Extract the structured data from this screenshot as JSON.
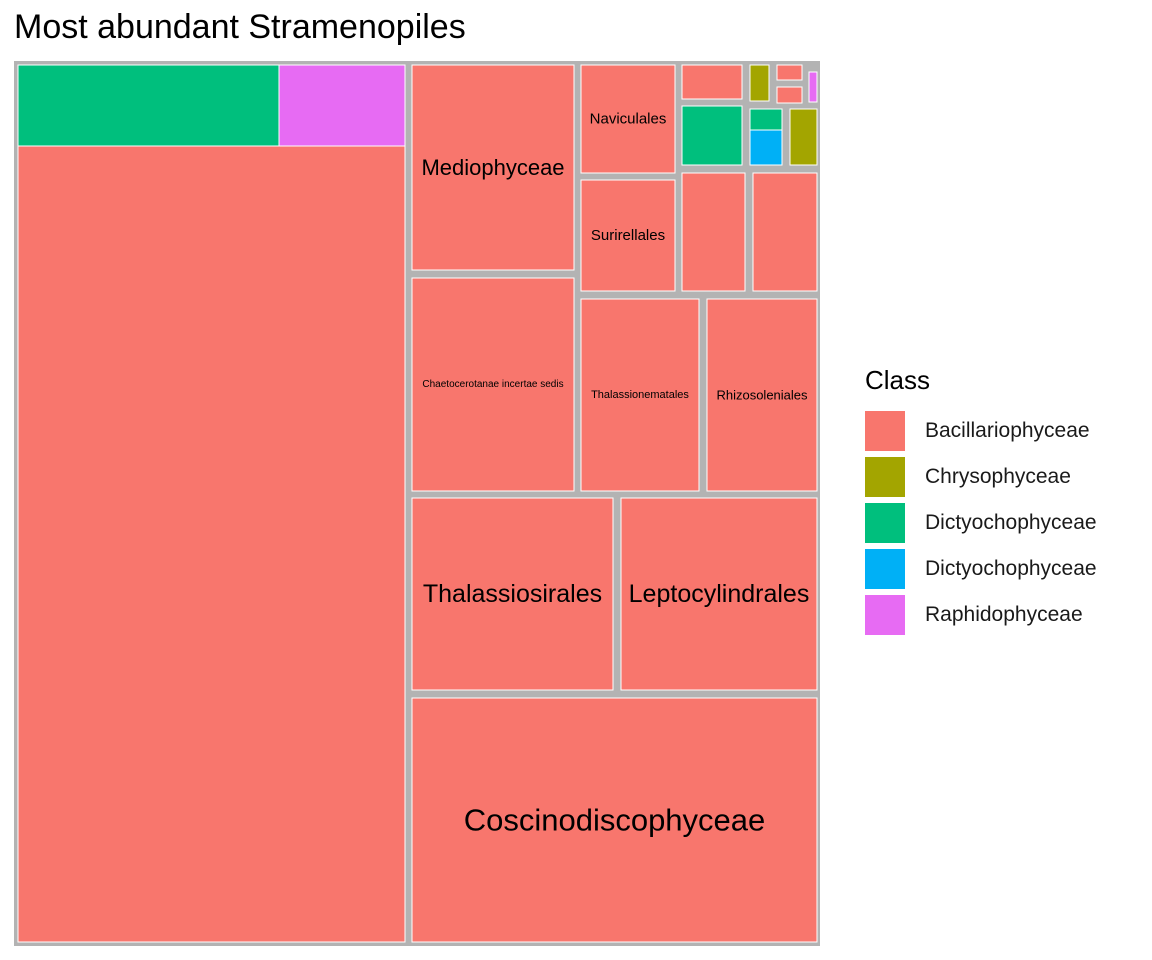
{
  "chart_data": {
    "type": "treemap",
    "title": "Most abundant Stramenopiles",
    "border_color": "#b3b3b3",
    "legend": {
      "title": "Class",
      "position": "right",
      "entries": [
        {
          "label": "Bacillariophyceae",
          "color": "#F8766D"
        },
        {
          "label": "Chrysophyceae",
          "color": "#A3A500"
        },
        {
          "label": "Dictyochophyceae",
          "color": "#00BF7D"
        },
        {
          "label": "Dictyochophyceae",
          "color": "#00B0F6"
        },
        {
          "label": "Raphidophyceae",
          "color": "#E76BF3"
        }
      ]
    },
    "groups": [
      {
        "label": "",
        "class": "Bacillariophyceae",
        "value": 347,
        "children": [
          {
            "class": "Bacillariophyceae",
            "value": 285,
            "fill": "#F8766D",
            "label": ""
          },
          {
            "class": "Dictyochophyceae",
            "value": 37,
            "fill": "#00BF7D",
            "label": ""
          },
          {
            "class": "Raphidophyceae",
            "value": 25,
            "fill": "#E76BF3",
            "label": ""
          }
        ]
      },
      {
        "label": "Coscinodiscophyceae",
        "class": "Bacillariophyceae",
        "value": 98,
        "children": [
          {
            "class": "Bacillariophyceae",
            "value": 98,
            "fill": "#F8766D",
            "label": ""
          }
        ]
      },
      {
        "label": "Thalassiosirales",
        "class": "Bacillariophyceae",
        "value": 39,
        "children": [
          {
            "class": "Bacillariophyceae",
            "value": 39,
            "fill": "#F8766D",
            "label": ""
          }
        ]
      },
      {
        "label": "Leptocylindrales",
        "class": "Bacillariophyceae",
        "value": 38,
        "children": [
          {
            "class": "Bacillariophyceae",
            "value": 38,
            "fill": "#F8766D",
            "label": ""
          }
        ]
      },
      {
        "label": "Mediophyceae",
        "class": "Bacillariophyceae",
        "value": 34,
        "children": [
          {
            "class": "Bacillariophyceae",
            "value": 34,
            "fill": "#F8766D",
            "label": ""
          }
        ]
      },
      {
        "label": "Chaetocerotanae incertae sedis",
        "class": "Bacillariophyceae",
        "value": 33,
        "children": [
          {
            "class": "Bacillariophyceae",
            "value": 33,
            "fill": "#F8766D",
            "label": ""
          }
        ]
      },
      {
        "label": "Thalassionematales",
        "class": "Bacillariophyceae",
        "value": 24,
        "children": [
          {
            "class": "Bacillariophyceae",
            "value": 24,
            "fill": "#F8766D",
            "label": ""
          }
        ]
      },
      {
        "label": "Rhizosoleniales",
        "class": "Bacillariophyceae",
        "value": 22,
        "children": [
          {
            "class": "Bacillariophyceae",
            "value": 22,
            "fill": "#F8766D",
            "label": ""
          }
        ]
      },
      {
        "label": "Naviculales",
        "class": "Bacillariophyceae",
        "value": 10,
        "children": [
          {
            "class": "Bacillariophyceae",
            "value": 10,
            "fill": "#F8766D",
            "label": ""
          }
        ]
      },
      {
        "label": "Surirellales",
        "class": "Bacillariophyceae",
        "value": 10,
        "children": [
          {
            "class": "Bacillariophyceae",
            "value": 10,
            "fill": "#F8766D",
            "label": ""
          }
        ]
      },
      {
        "label": "",
        "class": "Bacillariophyceae",
        "value": 7.5,
        "children": [
          {
            "class": "Bacillariophyceae",
            "value": 7.5,
            "fill": "#F8766D",
            "label": ""
          }
        ]
      },
      {
        "label": "",
        "class": "Bacillariophyceae",
        "value": 7.5,
        "children": [
          {
            "class": "Bacillariophyceae",
            "value": 7.5,
            "fill": "#F8766D",
            "label": ""
          }
        ]
      },
      {
        "label": "",
        "class": "Bacillariophyceae",
        "value": 2.7,
        "children": [
          {
            "class": "Bacillariophyceae",
            "value": 2.7,
            "fill": "#F8766D",
            "label": ""
          }
        ]
      },
      {
        "label": "",
        "class": "Dictyochophyceae",
        "value": 3.4,
        "children": [
          {
            "class": "Dictyochophyceae",
            "value": 3.4,
            "fill": "#00BF7D",
            "label": ""
          }
        ]
      },
      {
        "label": "",
        "class": "Chrysophyceae",
        "value": 0.9,
        "children": [
          {
            "class": "Chrysophyceae",
            "value": 0.9,
            "fill": "#A3A500",
            "label": ""
          }
        ]
      },
      {
        "label": "",
        "class": "Dictyochophyceae",
        "value": 1.5,
        "children": [
          {
            "class": "Dictyochophyceae",
            "value": 0.5,
            "fill": "#00BF7D",
            "label": ""
          },
          {
            "class": "Dictyochophyceae",
            "value": 1.0,
            "fill": "#00B0F6",
            "label": ""
          }
        ]
      },
      {
        "label": "",
        "class": "Bacillariophyceae",
        "value": 0.7,
        "children": [
          {
            "class": "Bacillariophyceae",
            "value": 0.35,
            "fill": "#F8766D",
            "label": ""
          },
          {
            "class": "Bacillariophyceae",
            "value": 0.35,
            "fill": "#F8766D",
            "label": ""
          }
        ]
      },
      {
        "label": "",
        "class": "Raphidophyceae",
        "value": 0.2,
        "children": [
          {
            "class": "Raphidophyceae",
            "value": 0.2,
            "fill": "#E76BF3",
            "label": ""
          }
        ]
      },
      {
        "label": "",
        "class": "Chrysophyceae",
        "value": 1.4,
        "children": [
          {
            "class": "Chrysophyceae",
            "value": 1.4,
            "fill": "#A3A500",
            "label": ""
          }
        ]
      }
    ]
  }
}
